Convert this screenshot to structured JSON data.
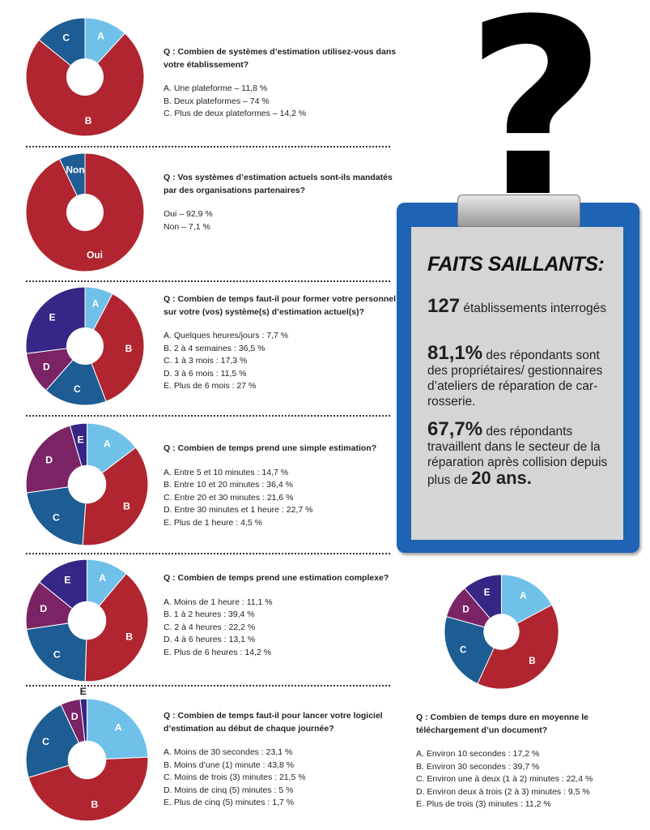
{
  "colors": {
    "A": "#70c1ea",
    "B": "#b0252f",
    "C": "#1e5c94",
    "D": "#7a2365",
    "E": "#362686",
    "blue": "#1f63b4"
  },
  "chart_data": [
    {
      "type": "pie",
      "labels": [
        "A",
        "B",
        "C"
      ],
      "values": [
        11.8,
        74,
        14.2
      ],
      "question": "Q : Combien de systèmes d’estimation utilisez-vous dans votre établissement?",
      "options": [
        "A. Une plateforme – 11,8 %",
        "B. Deux plateformes – 74 %",
        "C. Plus de deux plateformes – 14,2 %"
      ]
    },
    {
      "type": "pie",
      "labels": [
        "Oui",
        "Non"
      ],
      "values": [
        92.9,
        7.1
      ],
      "question": "Q : Vos systèmes d’estimation actuels sont-ils mandatés par des organisations partenaires?",
      "options": [
        "Oui – 92,9 %",
        "Non – 7,1 %"
      ]
    },
    {
      "type": "pie",
      "labels": [
        "A",
        "B",
        "C",
        "D",
        "E"
      ],
      "values": [
        7.7,
        36.5,
        17.3,
        11.5,
        27
      ],
      "question": "Q : Combien de temps faut-il pour former votre personnel sur votre (vos) système(s) d’estimation actuel(s)?",
      "options": [
        "A. Quelques heures/jours : 7,7 %",
        "B. 2 à 4 semaines : 36,5 %",
        "C. 1 à 3 mois : 17,3 %",
        "D. 3 à 6 mois : 11,5 %",
        "E. Plus de 6 mois : 27 %"
      ]
    },
    {
      "type": "pie",
      "labels": [
        "A",
        "B",
        "C",
        "D",
        "E"
      ],
      "values": [
        14.7,
        36.4,
        21.6,
        22.7,
        4.5
      ],
      "question": "Q : Combien de temps prend une simple estimation?",
      "options": [
        "A. Entre 5 et 10 minutes : 14,7 %",
        "B. Entre 10 et 20 minutes : 36,4 %",
        "C. Entre 20 et 30 minutes : 21,6 %",
        "D. Entre 30 minutes et 1 heure : 22,7 %",
        "E. Plus de 1 heure : 4,5 %"
      ]
    },
    {
      "type": "pie",
      "labels": [
        "A",
        "B",
        "C",
        "D",
        "E"
      ],
      "values": [
        11.1,
        39.4,
        22.2,
        13.1,
        14.2
      ],
      "question": "Q : Combien de temps prend une estimation complexe?",
      "options": [
        "A. Moins de 1 heure : 11,1 %",
        "B. 1 à 2 heures : 39,4 %",
        "C. 2 à 4 heures : 22,2 %",
        "D. 4 à 6 heures : 13,1 %",
        "E. Plus de 6 heures : 14,2 %"
      ]
    },
    {
      "type": "pie",
      "labels": [
        "A",
        "B",
        "C",
        "D",
        "E"
      ],
      "values": [
        23.1,
        43.8,
        21.5,
        5,
        1.7
      ],
      "question": "Q : Combien de temps faut-il pour lancer votre logiciel d’estimation au début de chaque journée?",
      "options": [
        "A. Moins de 30 secondes : 23,1 %",
        "B. Moins d’une (1) minute : 43,8 %",
        "C. Moins de trois (3) minutes : 21,5 %",
        "D. Moins de cinq (5) minutes : 5 %",
        "E. Plus de cinq (5) minutes : 1,7 %"
      ]
    },
    {
      "type": "pie",
      "labels": [
        "A",
        "B",
        "C",
        "D",
        "E"
      ],
      "values": [
        17.2,
        39.7,
        22.4,
        9.5,
        11.2
      ],
      "question": "Q : Combien de temps dure en moyenne le téléchargement d’un document?",
      "options": [
        "A. Environ 10 secondes : 17,2 %",
        "B. Environ 30 secondes : 39,7 %",
        "C. Environ une à deux (1 à 2) minutes : 22,4 %",
        "D. Environ deux à trois (2 à 3) minutes : 9,5 %",
        "E. Plus de trois (3) minutes : 11,2 %"
      ]
    }
  ],
  "highlights": {
    "title": "FAITS SAILLANTS:",
    "items": [
      {
        "big": "127",
        "text": " établissements interrogés"
      },
      {
        "big": "81,1%",
        "text": " des répondants sont des propriétaires/ gestionnaires d’ateliers de réparation de car-rosserie."
      },
      {
        "big": "67,7%",
        "text": " des répondants travaillent dans le secteur de la réparation après collision depuis plus de ",
        "bold_tail": "20 ans."
      }
    ]
  },
  "question_mark": "?"
}
